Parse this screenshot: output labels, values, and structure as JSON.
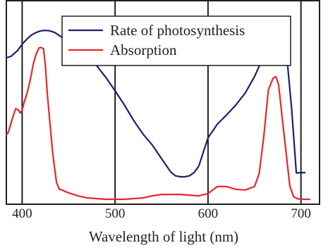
{
  "chart_data": {
    "type": "line",
    "title": "",
    "xlabel": "Wavelength of light (nm)",
    "ylabel": "",
    "xlim": [
      383,
      720
    ],
    "ylim": [
      0,
      1
    ],
    "x_ticks": [
      400,
      500,
      600,
      700
    ],
    "x_tick_labels": [
      "400",
      "500",
      "600",
      "700"
    ],
    "vertical_gridlines": [
      400,
      500,
      600,
      700
    ],
    "horizontal_grid": false,
    "legend_position": "top-right",
    "series": [
      {
        "name": "Rate of photosynthesis",
        "color": "#1f1f6e",
        "x": [
          383,
          388,
          395,
          400,
          405,
          410,
          415,
          420,
          425,
          430,
          435,
          440,
          450,
          460,
          470,
          480,
          490,
          500,
          510,
          520,
          530,
          540,
          550,
          560,
          565,
          570,
          575,
          580,
          585,
          590,
          600,
          610,
          620,
          630,
          640,
          650,
          660,
          665,
          670,
          675,
          680,
          685,
          690,
          695,
          700,
          705
        ],
        "y": [
          0.612,
          0.618,
          0.643,
          0.67,
          0.692,
          0.71,
          0.721,
          0.728,
          0.73,
          0.728,
          0.721,
          0.708,
          0.682,
          0.654,
          0.619,
          0.579,
          0.528,
          0.47,
          0.409,
          0.342,
          0.284,
          0.237,
          0.178,
          0.12,
          0.104,
          0.1,
          0.1,
          0.104,
          0.118,
          0.145,
          0.268,
          0.326,
          0.366,
          0.409,
          0.46,
          0.531,
          0.619,
          0.665,
          0.699,
          0.71,
          0.692,
          0.608,
          0.391,
          0.116,
          0.118,
          0.118
        ]
      },
      {
        "name": "Absorption",
        "color": "#e8262c",
        "x": [
          383,
          385,
          390,
          393,
          396,
          398,
          400,
          402,
          405,
          408,
          410,
          412,
          415,
          418,
          420,
          423,
          425,
          427,
          430,
          433,
          437,
          440,
          443,
          446,
          450,
          460,
          470,
          480,
          490,
          500,
          510,
          520,
          530,
          540,
          550,
          560,
          570,
          580,
          590,
          600,
          610,
          620,
          630,
          640,
          650,
          655,
          660,
          665,
          670,
          673,
          676,
          680,
          684,
          688,
          692,
          696,
          700,
          705,
          710
        ],
        "y": [
          0.28,
          0.29,
          0.357,
          0.393,
          0.387,
          0.374,
          0.387,
          0.418,
          0.456,
          0.503,
          0.543,
          0.586,
          0.627,
          0.654,
          0.657,
          0.651,
          0.579,
          0.461,
          0.328,
          0.196,
          0.076,
          0.046,
          0.043,
          0.037,
          0.031,
          0.018,
          0.009,
          0.006,
          0.003,
          0.003,
          0.003,
          0.006,
          0.009,
          0.018,
          0.024,
          0.024,
          0.024,
          0.021,
          0.018,
          0.028,
          0.058,
          0.058,
          0.046,
          0.043,
          0.058,
          0.113,
          0.271,
          0.474,
          0.524,
          0.531,
          0.496,
          0.347,
          0.205,
          0.061,
          0.015,
          0.006,
          0.003,
          0.003,
          0.003
        ]
      }
    ]
  }
}
